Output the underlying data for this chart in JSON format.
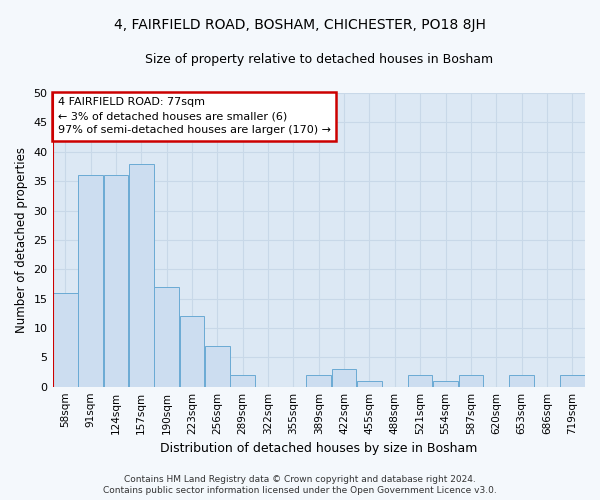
{
  "title": "4, FAIRFIELD ROAD, BOSHAM, CHICHESTER, PO18 8JH",
  "subtitle": "Size of property relative to detached houses in Bosham",
  "xlabel": "Distribution of detached houses by size in Bosham",
  "ylabel": "Number of detached properties",
  "categories": [
    "58sqm",
    "91sqm",
    "124sqm",
    "157sqm",
    "190sqm",
    "223sqm",
    "256sqm",
    "289sqm",
    "322sqm",
    "355sqm",
    "389sqm",
    "422sqm",
    "455sqm",
    "488sqm",
    "521sqm",
    "554sqm",
    "587sqm",
    "620sqm",
    "653sqm",
    "686sqm",
    "719sqm"
  ],
  "values": [
    16,
    36,
    36,
    38,
    17,
    12,
    7,
    2,
    0,
    0,
    2,
    3,
    1,
    0,
    2,
    1,
    2,
    0,
    2,
    0,
    2
  ],
  "bar_color": "#ccddf0",
  "bar_edge_color": "#6aaad4",
  "marker_color": "#cc0000",
  "annotation_text": "4 FAIRFIELD ROAD: 77sqm\n← 3% of detached houses are smaller (6)\n97% of semi-detached houses are larger (170) →",
  "annotation_box_facecolor": "#ffffff",
  "annotation_box_edge": "#cc0000",
  "ylim": [
    0,
    50
  ],
  "yticks": [
    0,
    5,
    10,
    15,
    20,
    25,
    30,
    35,
    40,
    45,
    50
  ],
  "grid_color": "#c8d8e8",
  "bg_color": "#dce8f4",
  "fig_bg_color": "#f4f8fc",
  "footer1": "Contains HM Land Registry data © Crown copyright and database right 2024.",
  "footer2": "Contains public sector information licensed under the Open Government Licence v3.0.",
  "title_fontsize": 10,
  "subtitle_fontsize": 9
}
